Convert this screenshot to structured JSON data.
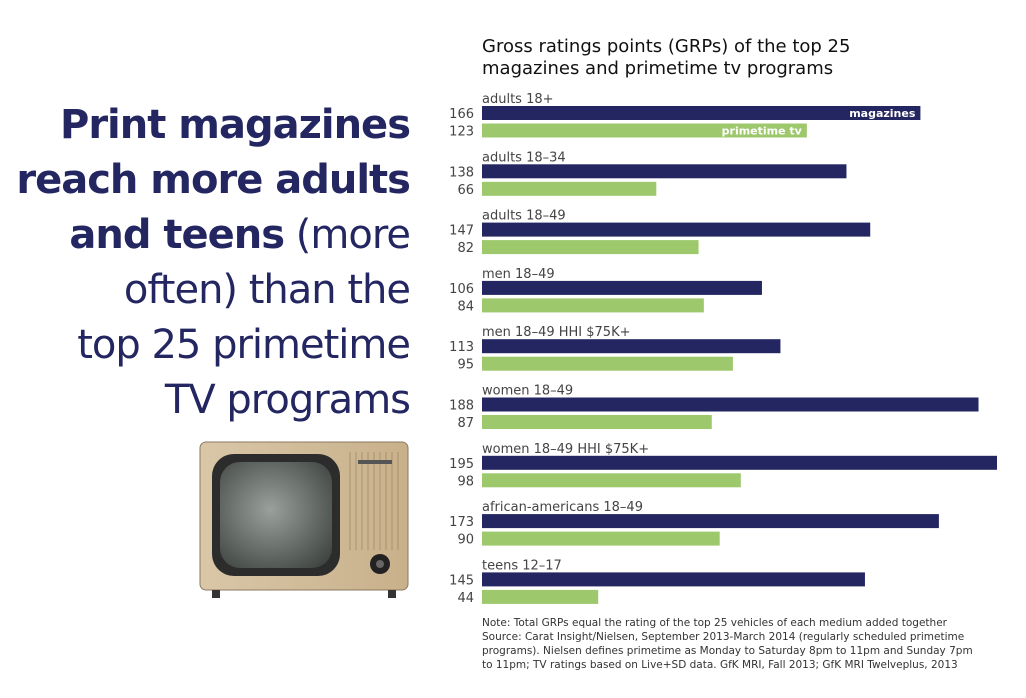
{
  "headline": {
    "bold_lines": [
      "Print magazines",
      "reach more adults",
      "and teens"
    ],
    "light_parts": [
      "(more",
      "often) than the",
      "top 25 primetime",
      "TV programs"
    ]
  },
  "chart_data": {
    "type": "bar",
    "orientation": "horizontal",
    "title": "Gross ratings points (GRPs) of the top 25 magazines and primetime tv programs",
    "title_lines": [
      "Gross ratings points (GRPs) of the top 25",
      "magazines and primetime tv programs"
    ],
    "categories": [
      "adults 18+",
      "adults 18–34",
      "adults 18–49",
      "men 18–49",
      "men 18–49  HHI $75K+",
      "women 18–49",
      "women 18–49  HHI $75K+",
      "african-americans 18–49",
      "teens 12–17"
    ],
    "series": [
      {
        "name": "magazines",
        "color": "#232660",
        "values": [
          166,
          138,
          147,
          106,
          113,
          188,
          195,
          173,
          145
        ]
      },
      {
        "name": "primetime tv",
        "color": "#9dc86b",
        "values": [
          123,
          66,
          82,
          84,
          95,
          87,
          98,
          90,
          44
        ]
      }
    ],
    "xlim": [
      0,
      195
    ],
    "grid": false,
    "legend": "inline labels on first group bars"
  },
  "note": {
    "lines": [
      "Note: Total GRPs equal the rating of the top 25 vehicles of each medium added together",
      "Source: Carat Insight/Nielsen, September 2013-March 2014 (regularly scheduled primetime",
      "programs). Nielsen defines primetime as Monday to Saturday 8pm to 11pm and Sunday 7pm",
      "to 11pm; TV ratings based on Live+SD data. GfK MRI, Fall 2013; GfK MRI Twelveplus, 2013"
    ]
  },
  "image": {
    "icon": "vintage-television-icon"
  }
}
